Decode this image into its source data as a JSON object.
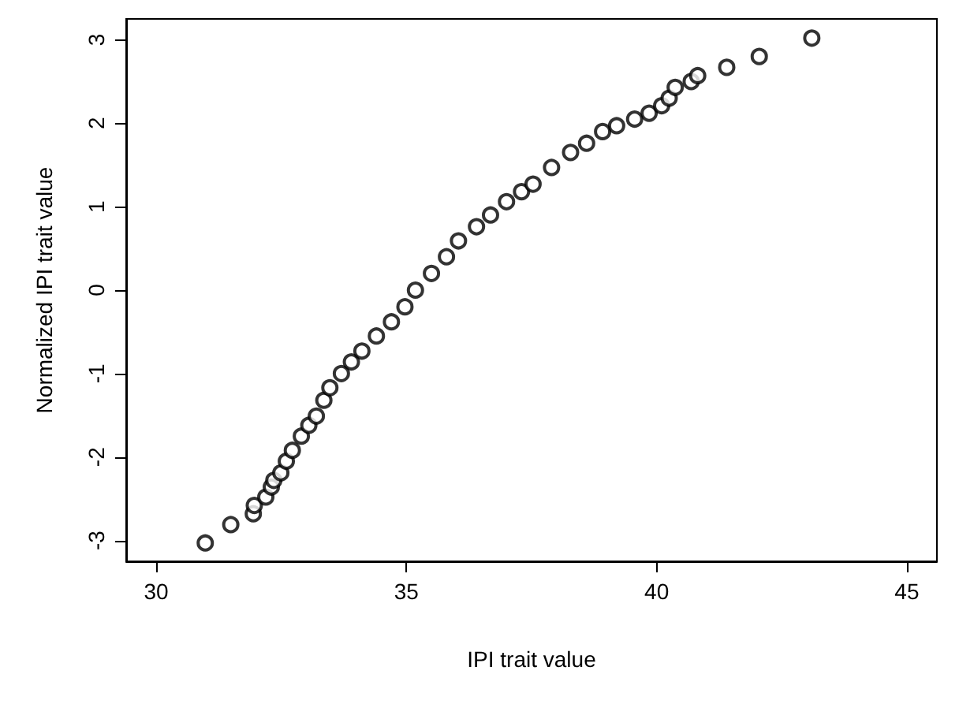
{
  "chart_data": {
    "type": "scatter",
    "xlabel": "IPI trait value",
    "ylabel": "Normalized IPI trait value",
    "xlim": [
      29.4,
      45.6
    ],
    "xticks": [
      30,
      35,
      40,
      45
    ],
    "ylim": [
      -3.25,
      3.25
    ],
    "yticks": [
      -3,
      -2,
      -1,
      0,
      1,
      2,
      3
    ],
    "marker": "circle",
    "grid": false,
    "series": [
      {
        "color": "#000000",
        "x": [
          30.98,
          31.49,
          31.94,
          31.96,
          32.19,
          32.3,
          32.35,
          32.49,
          32.6,
          32.72,
          32.9,
          33.05,
          33.2,
          33.35,
          33.47,
          33.7,
          33.9,
          34.11,
          34.4,
          34.7,
          34.97,
          35.18,
          35.5,
          35.8,
          36.04,
          36.4,
          36.68,
          37.0,
          37.3,
          37.53,
          37.9,
          38.28,
          38.6,
          38.92,
          39.2,
          39.56,
          39.85,
          40.1,
          40.25,
          40.37,
          40.69,
          40.82,
          41.4,
          42.05,
          43.1
        ],
        "values": [
          -3.03,
          -2.81,
          -2.68,
          -2.58,
          -2.48,
          -2.36,
          -2.28,
          -2.19,
          -2.05,
          -1.92,
          -1.75,
          -1.62,
          -1.51,
          -1.32,
          -1.17,
          -1.0,
          -0.86,
          -0.73,
          -0.55,
          -0.38,
          -0.2,
          0.0,
          0.2,
          0.4,
          0.59,
          0.76,
          0.9,
          1.06,
          1.18,
          1.27,
          1.47,
          1.65,
          1.76,
          1.9,
          1.97,
          2.05,
          2.12,
          2.21,
          2.3,
          2.43,
          2.5,
          2.57,
          2.67,
          2.8,
          3.02
        ]
      }
    ]
  }
}
